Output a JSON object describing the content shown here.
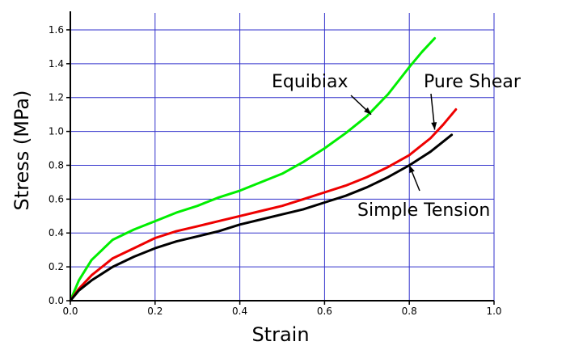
{
  "chart_data": {
    "type": "line",
    "title": "",
    "xlabel": "Strain",
    "ylabel": "Stress (MPa)",
    "xlim": [
      0.0,
      1.0
    ],
    "ylim": [
      0.0,
      1.7
    ],
    "xticks": [
      0.0,
      0.2,
      0.4,
      0.6,
      0.8,
      1.0
    ],
    "xtick_labels": [
      "0.0",
      "0.2",
      "0.4",
      "0.6",
      "0.8",
      "1.0"
    ],
    "yticks": [
      0.0,
      0.2,
      0.4,
      0.6,
      0.8,
      1.0,
      1.2,
      1.4,
      1.6
    ],
    "ytick_labels": [
      "0.0",
      "0.2",
      "0.4",
      "0.6",
      "0.8",
      "1.0",
      "1.2",
      "1.4",
      "1.6"
    ],
    "grid": true,
    "grid_color": "#3333cc",
    "legend": "none (direct annotations)",
    "series": [
      {
        "name": "Equibiax",
        "color": "#00ee00",
        "x": [
          0.0,
          0.02,
          0.05,
          0.1,
          0.15,
          0.2,
          0.25,
          0.3,
          0.35,
          0.4,
          0.45,
          0.5,
          0.55,
          0.6,
          0.65,
          0.7,
          0.75,
          0.8,
          0.83,
          0.86
        ],
        "y": [
          0.0,
          0.12,
          0.24,
          0.36,
          0.42,
          0.47,
          0.52,
          0.56,
          0.61,
          0.65,
          0.7,
          0.75,
          0.82,
          0.9,
          0.99,
          1.09,
          1.22,
          1.38,
          1.47,
          1.55
        ]
      },
      {
        "name": "Pure Shear",
        "color": "#ee0000",
        "x": [
          0.0,
          0.02,
          0.05,
          0.1,
          0.15,
          0.2,
          0.25,
          0.3,
          0.35,
          0.4,
          0.45,
          0.5,
          0.55,
          0.6,
          0.65,
          0.7,
          0.75,
          0.8,
          0.85,
          0.88,
          0.91
        ],
        "y": [
          0.0,
          0.07,
          0.15,
          0.25,
          0.31,
          0.37,
          0.41,
          0.44,
          0.47,
          0.5,
          0.53,
          0.56,
          0.6,
          0.64,
          0.68,
          0.73,
          0.79,
          0.86,
          0.96,
          1.04,
          1.13
        ]
      },
      {
        "name": "Simple Tension",
        "color": "#000000",
        "x": [
          0.0,
          0.02,
          0.05,
          0.1,
          0.15,
          0.2,
          0.25,
          0.3,
          0.35,
          0.4,
          0.45,
          0.5,
          0.55,
          0.6,
          0.65,
          0.7,
          0.75,
          0.8,
          0.85,
          0.88,
          0.9
        ],
        "y": [
          0.0,
          0.06,
          0.12,
          0.2,
          0.26,
          0.31,
          0.35,
          0.38,
          0.41,
          0.45,
          0.48,
          0.51,
          0.54,
          0.58,
          0.62,
          0.67,
          0.73,
          0.8,
          0.88,
          0.94,
          0.98
        ]
      }
    ],
    "annotations": [
      {
        "text": "Equibiax",
        "series": "Equibiax",
        "arrow_to": [
          0.71,
          1.1
        ]
      },
      {
        "text": "Pure Shear",
        "series": "Pure Shear",
        "arrow_to": [
          0.86,
          1.01
        ]
      },
      {
        "text": "Simple Tension",
        "series": "Simple Tension",
        "arrow_to": [
          0.8,
          0.8
        ]
      }
    ]
  }
}
